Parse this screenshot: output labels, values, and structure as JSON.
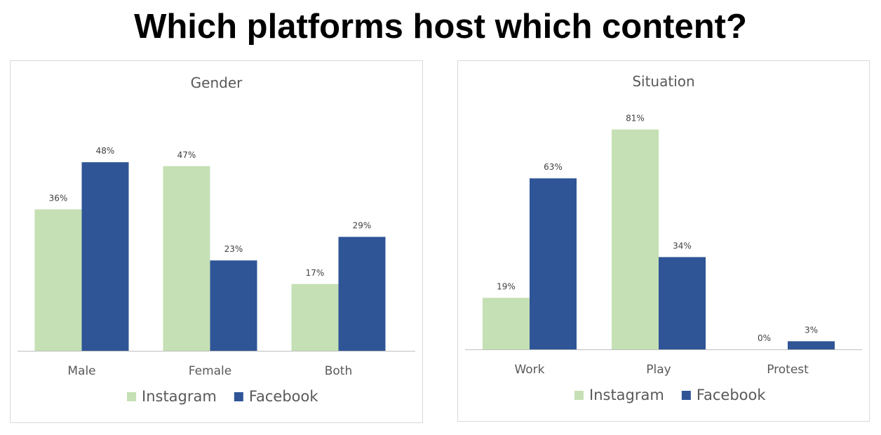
{
  "title": "Which platforms host which content?",
  "colors": {
    "instagram": "#c5e0b4",
    "facebook": "#2f5597",
    "axis": "#bfbfbf",
    "border": "#d9d9d9"
  },
  "chart_data": [
    {
      "type": "bar",
      "title": "Gender",
      "categories": [
        "Male",
        "Female",
        "Both"
      ],
      "series": [
        {
          "name": "Instagram",
          "values": [
            36,
            47,
            17
          ],
          "labels": [
            "36%",
            "47%",
            "17%"
          ],
          "color": "#c5e0b4"
        },
        {
          "name": "Facebook",
          "values": [
            48,
            23,
            29
          ],
          "labels": [
            "48%",
            "23%",
            "29%"
          ],
          "color": "#2f5597"
        }
      ],
      "ylim": [
        0,
        70
      ],
      "grid": false,
      "legend": "bottom"
    },
    {
      "type": "bar",
      "title": "Situation",
      "categories": [
        "Work",
        "Play",
        "Protest"
      ],
      "series": [
        {
          "name": "Instagram",
          "values": [
            19,
            81,
            0
          ],
          "labels": [
            "19%",
            "81%",
            "0%"
          ],
          "color": "#c5e0b4"
        },
        {
          "name": "Facebook",
          "values": [
            63,
            34,
            3
          ],
          "labels": [
            "63%",
            "34%",
            "3%"
          ],
          "color": "#2f5597"
        }
      ],
      "ylim": [
        0,
        85
      ],
      "grid": false,
      "legend": "bottom"
    }
  ]
}
